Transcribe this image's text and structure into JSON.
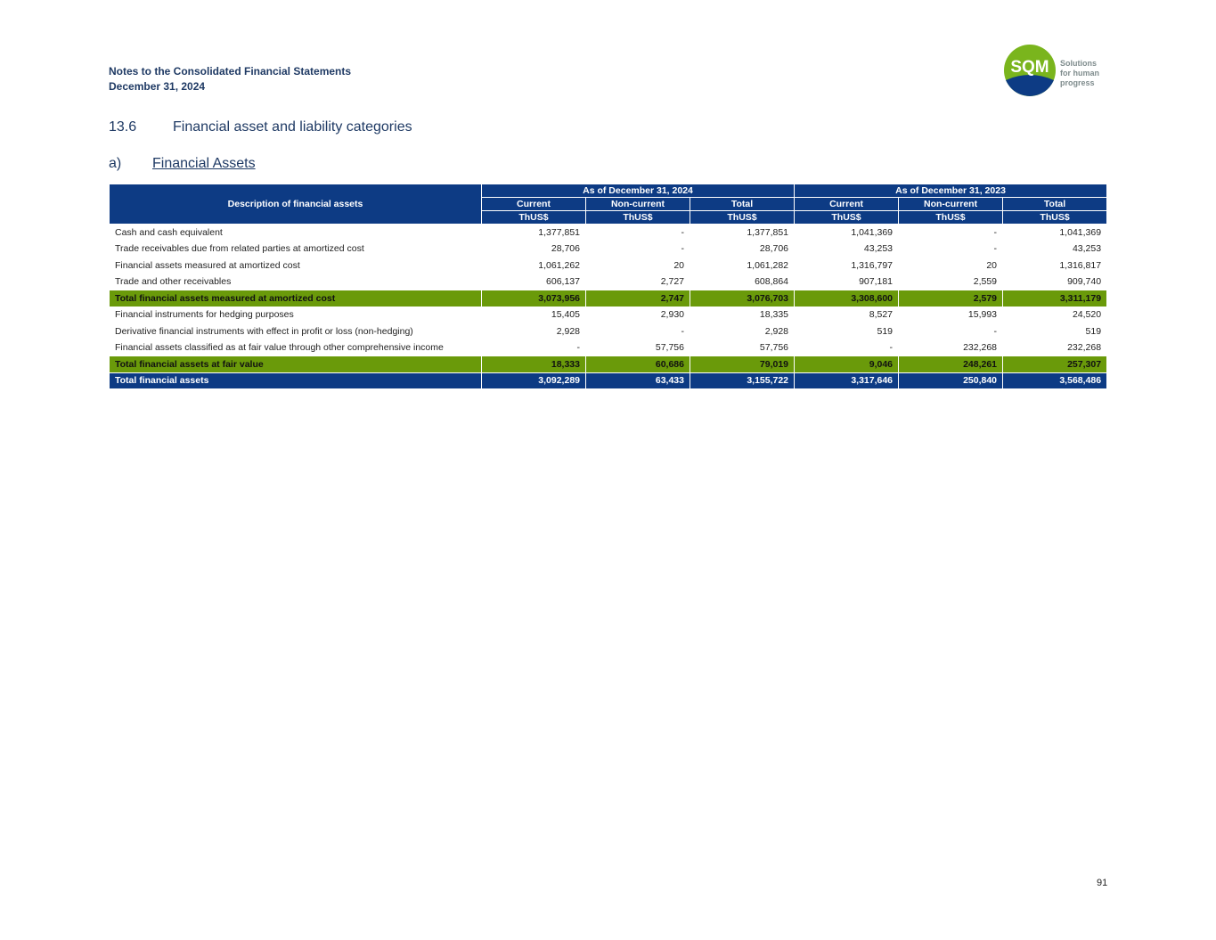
{
  "header": {
    "line1": "Notes to the Consolidated Financial Statements",
    "line2": "December 31, 2024"
  },
  "logo": {
    "mark": "SQM",
    "tagline1": "Solutions",
    "tagline2": "for human",
    "tagline3": "progress",
    "colors": {
      "green": "#7ab51d",
      "blue": "#0d3b84"
    }
  },
  "section": {
    "number": "13.6",
    "title": "Financial asset and liability categories"
  },
  "subsection": {
    "letter": "a)",
    "title": "Financial Assets"
  },
  "table": {
    "desc_header": "Description of financial assets",
    "group_2024": "As of December 31, 2024",
    "group_2023": "As of December 31, 2023",
    "col_labels": [
      "Current",
      "Non-current",
      "Total",
      "Current",
      "Non-current",
      "Total"
    ],
    "units": [
      "ThUS$",
      "ThUS$",
      "ThUS$",
      "ThUS$",
      "ThUS$",
      "ThUS$"
    ],
    "rows": [
      {
        "label": "Cash and cash equivalent",
        "values": [
          "1,377,851",
          "-",
          "1,377,851",
          "1,041,369",
          "-",
          "1,041,369"
        ]
      },
      {
        "label": "Trade receivables due from related parties at amortized cost",
        "values": [
          "28,706",
          "-",
          "28,706",
          "43,253",
          "-",
          "43,253"
        ]
      },
      {
        "label": "Financial assets measured at amortized cost",
        "values": [
          "1,061,262",
          "20",
          "1,061,282",
          "1,316,797",
          "20",
          "1,316,817"
        ]
      },
      {
        "label": "Trade and other receivables",
        "values": [
          "606,137",
          "2,727",
          "608,864",
          "907,181",
          "2,559",
          "909,740"
        ]
      },
      {
        "label": "Total financial assets measured at amortized cost",
        "values": [
          "3,073,956",
          "2,747",
          "3,076,703",
          "3,308,600",
          "2,579",
          "3,311,179"
        ]
      },
      {
        "label": "Financial instruments for hedging purposes",
        "values": [
          "15,405",
          "2,930",
          "18,335",
          "8,527",
          "15,993",
          "24,520"
        ]
      },
      {
        "label": "Derivative financial instruments with effect in profit or loss (non-hedging)",
        "values": [
          "2,928",
          "-",
          "2,928",
          "519",
          "-",
          "519"
        ]
      },
      {
        "label": "Financial assets classified as at fair value through other comprehensive income",
        "values": [
          "-",
          "57,756",
          "57,756",
          "-",
          "232,268",
          "232,268"
        ]
      },
      {
        "label": "Total financial assets at fair value",
        "values": [
          "18,333",
          "60,686",
          "79,019",
          "9,046",
          "248,261",
          "257,307"
        ]
      },
      {
        "label": "Total financial assets",
        "values": [
          "3,092,289",
          "63,433",
          "3,155,722",
          "3,317,646",
          "250,840",
          "3,568,486"
        ]
      }
    ],
    "colors": {
      "header_blue": "#0d3b84",
      "subtotal_green": "#6a9a0a"
    }
  },
  "page_number": "91"
}
